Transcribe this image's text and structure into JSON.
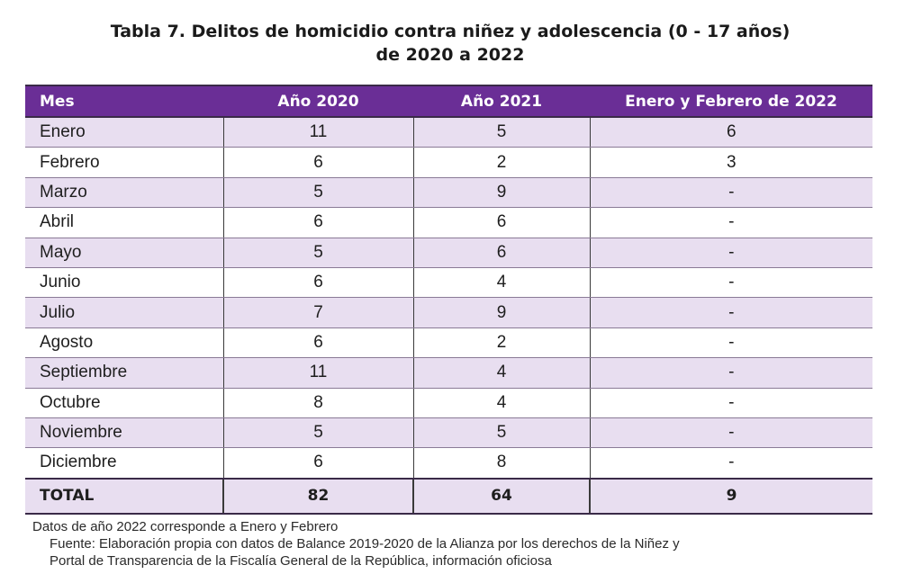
{
  "title": {
    "line1": "Tabla 7. Delitos de homicidio contra niñez y adolescencia (0 - 17 años)",
    "line2": "de 2020 a 2022"
  },
  "table": {
    "headers": [
      "Mes",
      "Año 2020",
      "Año 2021",
      "Enero y Febrero de 2022"
    ],
    "rows": [
      [
        "Enero",
        "11",
        "5",
        "6"
      ],
      [
        "Febrero",
        "6",
        "2",
        "3"
      ],
      [
        "Marzo",
        "5",
        "9",
        "-"
      ],
      [
        "Abril",
        "6",
        "6",
        "-"
      ],
      [
        "Mayo",
        "5",
        "6",
        "-"
      ],
      [
        "Junio",
        "6",
        "4",
        "-"
      ],
      [
        "Julio",
        "7",
        "9",
        "-"
      ],
      [
        "Agosto",
        "6",
        "2",
        "-"
      ],
      [
        "Septiembre",
        "11",
        "4",
        "-"
      ],
      [
        "Octubre",
        "8",
        "4",
        "-"
      ],
      [
        "Noviembre",
        "5",
        "5",
        "-"
      ],
      [
        "Diciembre",
        "6",
        "8",
        "-"
      ]
    ],
    "total": [
      "TOTAL",
      "82",
      "64",
      "9"
    ]
  },
  "note": "Datos de año 2022 corresponde a Enero y Febrero",
  "source": {
    "line1": "Fuente: Elaboración propia con datos de Balance 2019-2020 de la Alianza por los derechos de la Niñez y",
    "line2": "Portal de Transparencia de la Fiscalía General de la República, información oficiosa"
  },
  "colors": {
    "header_bg": "#6a2e96",
    "row_shade": "#e8def0"
  }
}
